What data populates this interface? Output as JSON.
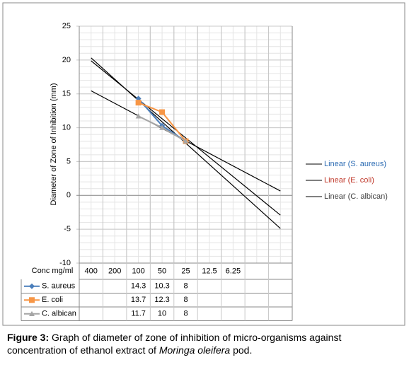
{
  "chart_data": {
    "type": "line",
    "y_axis_label": "Diameter of Zone of Inhibition (mm)",
    "x_axis_label": "Conc mg/ml",
    "categories": [
      "400",
      "200",
      "100",
      "50",
      "25",
      "12.5",
      "6.25",
      null,
      null
    ],
    "series": [
      {
        "name": "S. aureus",
        "color": "#4a7ebb",
        "marker": "diamond",
        "values": [
          null,
          null,
          14.3,
          10.3,
          8,
          null,
          null,
          null,
          null
        ],
        "trendline": "Linear (S. aureus)",
        "trendline_label_color": "#2e6db4"
      },
      {
        "name": "E. coli",
        "color": "#f79646",
        "marker": "square",
        "values": [
          null,
          null,
          13.7,
          12.3,
          8,
          null,
          null,
          null,
          null
        ],
        "trendline": "Linear (E. coli)",
        "trendline_label_color": "#c0392b"
      },
      {
        "name": "C. albican",
        "color": "#a5a5a5",
        "marker": "triangle",
        "values": [
          null,
          null,
          11.7,
          10,
          8,
          null,
          null,
          null,
          null
        ],
        "trendline": "Linear (C. albican)",
        "trendline_label_color": "#404040"
      }
    ],
    "trendline_color": "#000000",
    "ylim": [
      -10,
      25
    ],
    "yticks": [
      -10,
      -5,
      0,
      5,
      10,
      15,
      20,
      25
    ],
    "grid": true
  },
  "caption": {
    "label": "Figure 3:",
    "text": " Graph of diameter of zone of inhibition of micro-organisms against concentration of ethanol extract of ",
    "italic": "Moringa oleifera",
    "end": " pod."
  }
}
